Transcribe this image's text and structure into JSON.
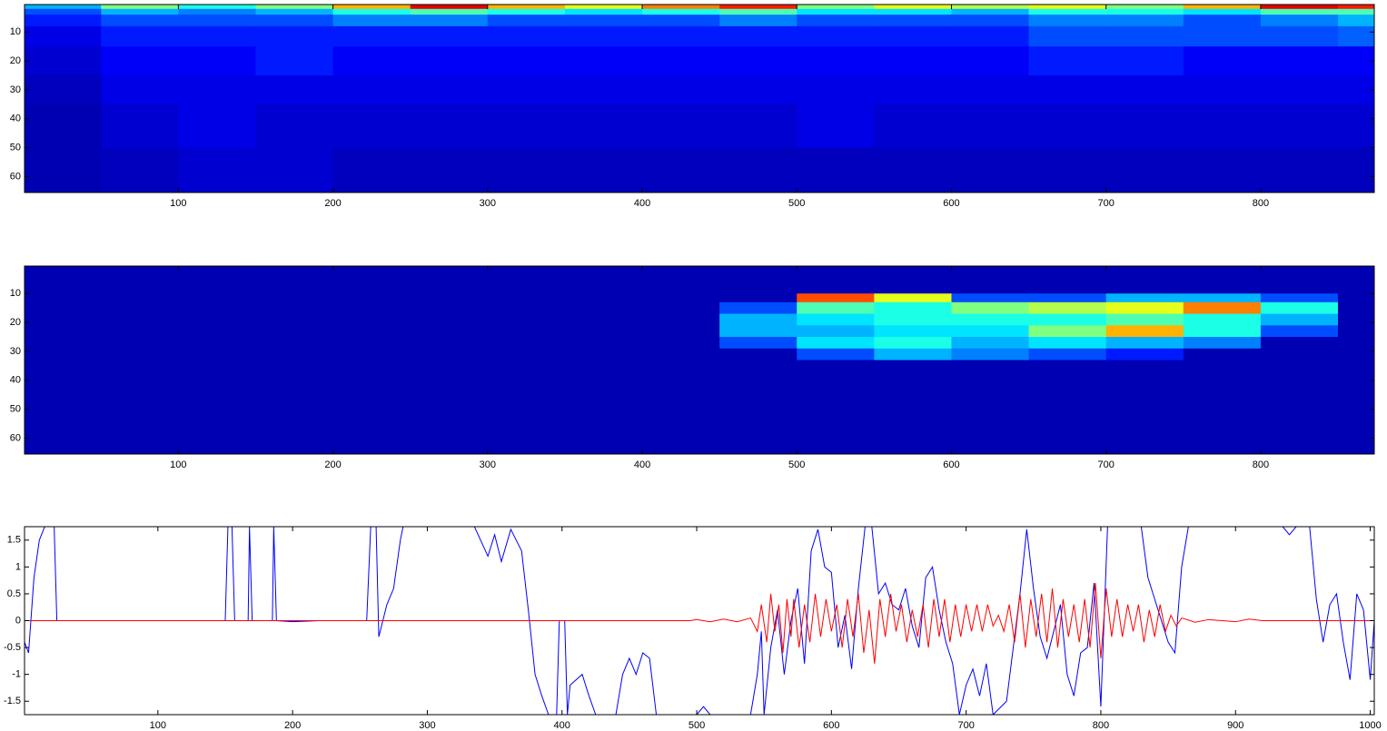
{
  "chart_data": [
    {
      "type": "heatmap",
      "colormap": "jet",
      "clim": [
        0,
        1
      ],
      "y_reversed": true,
      "xlim": [
        0.5,
        873.5
      ],
      "ylim": [
        0.5,
        65.5
      ],
      "xticks": [
        100,
        200,
        300,
        400,
        500,
        600,
        700,
        800
      ],
      "yticks": [
        10,
        20,
        30,
        40,
        50,
        60
      ],
      "xbins": [
        0.5,
        50,
        100,
        150,
        200,
        250,
        300,
        350,
        400,
        450,
        500,
        550,
        600,
        650,
        700,
        750,
        800,
        850,
        873.5
      ],
      "ybins": [
        0.5,
        2,
        4,
        8,
        15,
        25,
        35,
        50,
        65.5
      ],
      "values": [
        [
          0.3,
          0.5,
          0.4,
          0.5,
          0.7,
          0.9,
          0.7,
          0.6,
          0.75,
          0.85,
          0.5,
          0.6,
          0.55,
          0.6,
          0.5,
          0.7,
          0.9,
          0.85
        ],
        [
          0.2,
          0.3,
          0.25,
          0.3,
          0.4,
          0.45,
          0.4,
          0.35,
          0.4,
          0.45,
          0.35,
          0.35,
          0.3,
          0.4,
          0.4,
          0.35,
          0.45,
          0.45
        ],
        [
          0.15,
          0.2,
          0.2,
          0.2,
          0.25,
          0.25,
          0.2,
          0.2,
          0.2,
          0.25,
          0.2,
          0.2,
          0.2,
          0.25,
          0.25,
          0.2,
          0.25,
          0.3
        ],
        [
          0.1,
          0.15,
          0.15,
          0.15,
          0.15,
          0.15,
          0.15,
          0.15,
          0.15,
          0.15,
          0.15,
          0.15,
          0.15,
          0.2,
          0.2,
          0.2,
          0.2,
          0.22
        ],
        [
          0.08,
          0.12,
          0.12,
          0.15,
          0.12,
          0.12,
          0.12,
          0.12,
          0.12,
          0.12,
          0.12,
          0.12,
          0.12,
          0.15,
          0.15,
          0.12,
          0.12,
          0.12
        ],
        [
          0.06,
          0.1,
          0.1,
          0.1,
          0.1,
          0.1,
          0.1,
          0.1,
          0.1,
          0.1,
          0.1,
          0.1,
          0.1,
          0.1,
          0.1,
          0.1,
          0.1,
          0.1
        ],
        [
          0.05,
          0.08,
          0.1,
          0.08,
          0.08,
          0.08,
          0.08,
          0.08,
          0.08,
          0.08,
          0.1,
          0.08,
          0.08,
          0.08,
          0.08,
          0.08,
          0.08,
          0.08
        ],
        [
          0.05,
          0.06,
          0.08,
          0.08,
          0.06,
          0.06,
          0.06,
          0.06,
          0.06,
          0.06,
          0.06,
          0.06,
          0.06,
          0.06,
          0.06,
          0.06,
          0.06,
          0.06
        ]
      ]
    },
    {
      "type": "heatmap",
      "colormap": "jet",
      "clim": [
        0,
        1
      ],
      "y_reversed": true,
      "xlim": [
        0.5,
        873.5
      ],
      "ylim": [
        0.5,
        65.5
      ],
      "xticks": [
        100,
        200,
        300,
        400,
        500,
        600,
        700,
        800
      ],
      "yticks": [
        10,
        20,
        30,
        40,
        50,
        60
      ],
      "xbins": [
        0.5,
        50,
        100,
        150,
        200,
        250,
        300,
        350,
        400,
        450,
        500,
        550,
        600,
        650,
        700,
        750,
        800,
        850,
        873.5
      ],
      "ybins": [
        0.5,
        10,
        13,
        17,
        21,
        25,
        29,
        33,
        65.5
      ],
      "values": [
        [
          0.05,
          0.05,
          0.05,
          0.05,
          0.05,
          0.05,
          0.05,
          0.05,
          0.05,
          0.05,
          0.05,
          0.05,
          0.05,
          0.05,
          0.05,
          0.05,
          0.05,
          0.05
        ],
        [
          0.05,
          0.05,
          0.05,
          0.05,
          0.05,
          0.05,
          0.05,
          0.05,
          0.05,
          0.05,
          0.8,
          0.6,
          0.2,
          0.2,
          0.3,
          0.3,
          0.2,
          0.05
        ],
        [
          0.05,
          0.05,
          0.05,
          0.05,
          0.05,
          0.05,
          0.05,
          0.05,
          0.05,
          0.2,
          0.45,
          0.4,
          0.5,
          0.55,
          0.6,
          0.75,
          0.4,
          0.05
        ],
        [
          0.05,
          0.05,
          0.05,
          0.05,
          0.05,
          0.05,
          0.05,
          0.05,
          0.05,
          0.3,
          0.35,
          0.4,
          0.4,
          0.4,
          0.45,
          0.4,
          0.3,
          0.05
        ],
        [
          0.05,
          0.05,
          0.05,
          0.05,
          0.05,
          0.05,
          0.05,
          0.05,
          0.05,
          0.3,
          0.3,
          0.35,
          0.35,
          0.5,
          0.7,
          0.4,
          0.2,
          0.05
        ],
        [
          0.05,
          0.05,
          0.05,
          0.05,
          0.05,
          0.05,
          0.05,
          0.05,
          0.05,
          0.2,
          0.35,
          0.4,
          0.3,
          0.35,
          0.3,
          0.25,
          0.05,
          0.05
        ],
        [
          0.05,
          0.05,
          0.05,
          0.05,
          0.05,
          0.05,
          0.05,
          0.05,
          0.05,
          0.05,
          0.2,
          0.3,
          0.25,
          0.2,
          0.15,
          0.05,
          0.05,
          0.05
        ],
        [
          0.05,
          0.05,
          0.05,
          0.05,
          0.05,
          0.05,
          0.05,
          0.05,
          0.05,
          0.05,
          0.05,
          0.05,
          0.05,
          0.05,
          0.05,
          0.05,
          0.05,
          0.05
        ]
      ]
    },
    {
      "type": "line",
      "xlim": [
        1,
        1003
      ],
      "ylim": [
        -1.75,
        1.75
      ],
      "xticks": [
        100,
        200,
        300,
        400,
        500,
        600,
        700,
        800,
        900,
        1000
      ],
      "yticks": [
        -1.5,
        -1,
        -0.5,
        0,
        0.5,
        1,
        1.5
      ],
      "series": [
        {
          "color": "#0000ff",
          "x": [
            1,
            4,
            8,
            12,
            16,
            23,
            25,
            150,
            152,
            155,
            157,
            167,
            168,
            170,
            185,
            186,
            188,
            200,
            220,
            240,
            255,
            258,
            262,
            264,
            270,
            275,
            280,
            282,
            285,
            296,
            300,
            335,
            345,
            350,
            355,
            362,
            370,
            375,
            380,
            385,
            390,
            396,
            398,
            402,
            404,
            406,
            415,
            420,
            425,
            440,
            445,
            450,
            455,
            460,
            465,
            470,
            500,
            505,
            510,
            540,
            545,
            548,
            550,
            555,
            560,
            565,
            570,
            575,
            580,
            585,
            590,
            595,
            600,
            605,
            610,
            615,
            620,
            625,
            630,
            635,
            640,
            645,
            650,
            655,
            660,
            665,
            670,
            675,
            680,
            685,
            690,
            695,
            700,
            705,
            710,
            715,
            720,
            730,
            740,
            745,
            750,
            755,
            760,
            770,
            775,
            780,
            785,
            790,
            795,
            800,
            805,
            830,
            835,
            845,
            850,
            855,
            860,
            865,
            935,
            940,
            945,
            955,
            960,
            965,
            970,
            975,
            980,
            985,
            990,
            995,
            1000,
            1003
          ],
          "values": [
            -0.4,
            -0.6,
            0.8,
            1.5,
            1.75,
            1.75,
            0,
            0,
            1.75,
            1.75,
            0,
            0,
            1.75,
            0,
            0,
            1.75,
            0,
            -0.02,
            0,
            0,
            0,
            1.75,
            1.75,
            -0.3,
            0.3,
            0.6,
            1.5,
            1.75,
            1.75,
            1.75,
            1.75,
            1.75,
            1.2,
            1.6,
            1.1,
            1.7,
            1.3,
            0.2,
            -1,
            -1.4,
            -1.75,
            -1.75,
            0,
            0,
            -1.75,
            -1.2,
            -1,
            -1.4,
            -1.75,
            -1.75,
            -1,
            -0.7,
            -1,
            -0.6,
            -0.7,
            -1.75,
            -1.75,
            -1.6,
            -1.75,
            -1.75,
            -1,
            -0.2,
            -1.75,
            -0.5,
            0.2,
            -1,
            0,
            0.6,
            -0.8,
            1.3,
            1.7,
            1,
            0.9,
            -0.5,
            0.1,
            -0.9,
            0.6,
            1.75,
            1.75,
            0.5,
            0.7,
            0.3,
            0.2,
            0.6,
            -0.1,
            -0.5,
            0.8,
            1,
            0.2,
            -0.4,
            -0.8,
            -1.75,
            -1.2,
            -0.9,
            -1.4,
            -0.8,
            -1.75,
            -1.5,
            0.5,
            1.7,
            0.6,
            -0.3,
            -0.7,
            0.3,
            -1,
            -1.4,
            -0.6,
            -0.5,
            0.7,
            -1.6,
            1.75,
            1.75,
            0.8,
            0,
            -0.4,
            -0.6,
            1,
            1.75,
            1.75,
            1.6,
            1.75,
            1.75,
            0.4,
            -0.4,
            0.3,
            0.5,
            -0.4,
            -1.1,
            0.5,
            0.2,
            -1.1,
            0
          ]
        },
        {
          "color": "#ff0000",
          "x": [
            1,
            495,
            500,
            510,
            520,
            530,
            540,
            545,
            548,
            552,
            555,
            558,
            561,
            564,
            567,
            570,
            572,
            576,
            580,
            584,
            588,
            592,
            596,
            600,
            604,
            608,
            612,
            616,
            620,
            624,
            628,
            632,
            636,
            640,
            644,
            648,
            652,
            656,
            660,
            664,
            668,
            672,
            676,
            680,
            684,
            688,
            692,
            696,
            700,
            704,
            708,
            712,
            716,
            720,
            724,
            728,
            732,
            736,
            740,
            744,
            748,
            752,
            756,
            760,
            764,
            768,
            772,
            776,
            780,
            784,
            788,
            792,
            796,
            800,
            804,
            808,
            812,
            816,
            820,
            824,
            828,
            832,
            836,
            840,
            844,
            848,
            852,
            856,
            860,
            870,
            880,
            900,
            910,
            920,
            1003
          ],
          "values": [
            0,
            0,
            0.02,
            -0.02,
            0.03,
            -0.02,
            0.05,
            -0.2,
            0.3,
            -0.4,
            0.5,
            -0.2,
            0.3,
            -0.6,
            0.4,
            -0.3,
            0.4,
            -0.5,
            0.3,
            -0.4,
            0.5,
            -0.3,
            0.4,
            -0.2,
            0.3,
            -0.5,
            0.4,
            -0.3,
            0.5,
            -0.6,
            0.2,
            -0.8,
            0.4,
            -0.3,
            0.5,
            -0.2,
            0.3,
            -0.4,
            0.2,
            -0.3,
            0.3,
            -0.5,
            0.4,
            -0.3,
            0.4,
            -0.4,
            0.3,
            -0.3,
            0.3,
            -0.2,
            0.3,
            -0.2,
            0.3,
            -0.1,
            0.1,
            -0.2,
            0.3,
            -0.4,
            0.5,
            -0.5,
            0.4,
            -0.3,
            0.5,
            -0.4,
            0.6,
            -0.5,
            0.4,
            -0.3,
            0.3,
            -0.4,
            0.4,
            -0.5,
            0.7,
            -0.7,
            0.6,
            -0.3,
            0.4,
            -0.3,
            0.3,
            -0.2,
            0.3,
            -0.4,
            0.2,
            -0.3,
            0.3,
            -0.2,
            0.1,
            -0.1,
            0.05,
            -0.03,
            0.02,
            -0.02,
            0.03,
            0,
            0
          ]
        }
      ]
    }
  ]
}
